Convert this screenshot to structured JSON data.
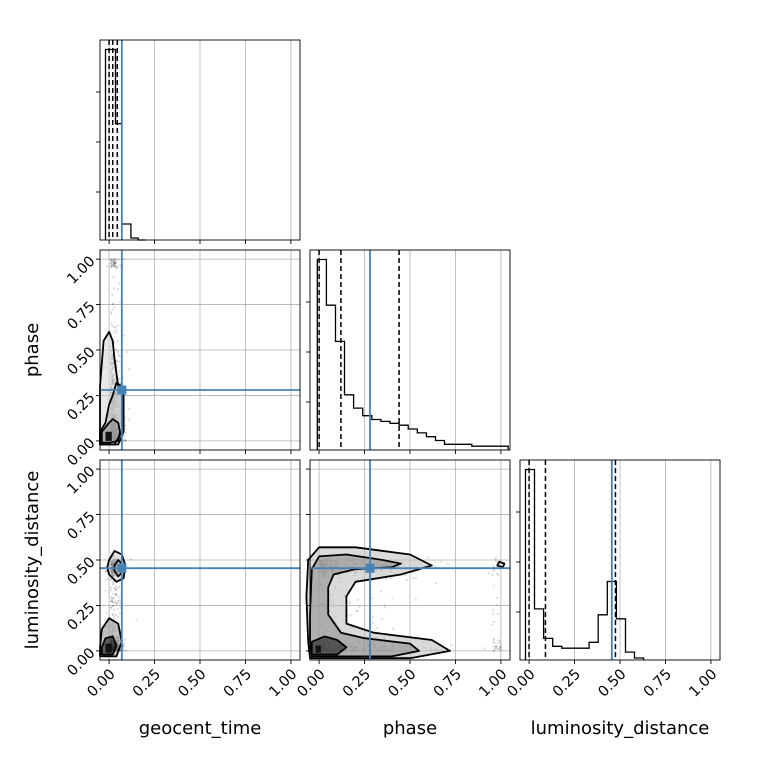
{
  "chart_data": {
    "type": "corner",
    "parameters": [
      "geocent_time",
      "phase",
      "luminosity_distance"
    ],
    "axis_range": [
      -0.05,
      1.05
    ],
    "ticks": [
      0.0,
      0.25,
      0.5,
      0.75,
      1.0
    ],
    "tick_labels": [
      "0.00",
      "0.25",
      "0.50",
      "0.75",
      "1.00"
    ],
    "grid": true,
    "truth_color": "#4682b4",
    "truths": {
      "geocent_time": 0.07,
      "phase": 0.28,
      "luminosity_distance": 0.455
    },
    "quantiles": {
      "geocent_time": [
        0.0,
        0.02,
        0.045
      ],
      "phase": [
        0.0,
        0.12,
        0.44
      ],
      "luminosity_distance": [
        0.0,
        0.09,
        0.475
      ]
    },
    "histograms": {
      "geocent_time": {
        "edges": [
          -0.02,
          0.035,
          0.07,
          0.12,
          0.16,
          0.2
        ],
        "counts": [
          0.95,
          0.58,
          0.08,
          0.01,
          0.0
        ]
      },
      "phase": {
        "edges": [
          -0.01,
          0.04,
          0.09,
          0.14,
          0.19,
          0.24,
          0.29,
          0.34,
          0.39,
          0.44,
          0.49,
          0.54,
          0.59,
          0.64,
          0.69,
          0.74,
          0.79,
          0.84,
          0.89,
          0.94,
          0.99,
          1.04
        ],
        "counts": [
          1.0,
          0.76,
          0.57,
          0.29,
          0.22,
          0.18,
          0.16,
          0.15,
          0.14,
          0.13,
          0.11,
          0.09,
          0.07,
          0.05,
          0.03,
          0.03,
          0.03,
          0.02,
          0.02,
          0.02,
          0.02
        ]
      },
      "luminosity_distance": {
        "edges": [
          -0.02,
          0.03,
          0.08,
          0.13,
          0.18,
          0.23,
          0.28,
          0.33,
          0.38,
          0.43,
          0.48,
          0.53,
          0.58,
          0.63
        ],
        "counts": [
          0.97,
          0.26,
          0.11,
          0.07,
          0.06,
          0.06,
          0.06,
          0.09,
          0.23,
          0.4,
          0.21,
          0.04,
          0.01
        ]
      }
    },
    "pairs": [
      {
        "x": "geocent_time",
        "y": "phase",
        "contours": [
          [
            [
              -0.02,
              0.0
            ],
            [
              0.0,
              0.0
            ],
            [
              0.015,
              0.0
            ],
            [
              0.015,
              0.05
            ],
            [
              0.0,
              0.05
            ],
            [
              -0.02,
              0.05
            ]
          ],
          [
            [
              -0.04,
              -0.01
            ],
            [
              0.0,
              -0.01
            ],
            [
              0.05,
              0.0
            ],
            [
              0.06,
              0.05
            ],
            [
              0.05,
              0.1
            ],
            [
              0.02,
              0.12
            ],
            [
              0.0,
              0.1
            ],
            [
              -0.04,
              0.05
            ]
          ],
          [
            [
              -0.05,
              -0.02
            ],
            [
              0.03,
              -0.02
            ],
            [
              0.07,
              0.05
            ],
            [
              0.075,
              0.2
            ],
            [
              0.07,
              0.3
            ],
            [
              0.04,
              0.32
            ],
            [
              0.02,
              0.25
            ],
            [
              0.0,
              0.2
            ],
            [
              -0.02,
              0.1
            ],
            [
              -0.05,
              0.05
            ]
          ],
          [
            [
              -0.05,
              -0.02
            ],
            [
              0.05,
              -0.02
            ],
            [
              0.08,
              0.05
            ],
            [
              0.08,
              0.25
            ],
            [
              0.05,
              0.3
            ],
            [
              0.03,
              0.45
            ],
            [
              0.02,
              0.55
            ],
            [
              0.0,
              0.6
            ],
            [
              -0.03,
              0.55
            ],
            [
              -0.05,
              0.3
            ]
          ]
        ]
      },
      {
        "x": "geocent_time",
        "y": "luminosity_distance",
        "contours": [
          [
            [
              -0.02,
              -0.01
            ],
            [
              0.015,
              -0.01
            ],
            [
              0.015,
              0.04
            ],
            [
              -0.02,
              0.04
            ]
          ],
          [
            [
              -0.04,
              -0.02
            ],
            [
              0.02,
              -0.02
            ],
            [
              0.04,
              0.03
            ],
            [
              0.02,
              0.08
            ],
            [
              -0.02,
              0.07
            ],
            [
              -0.04,
              0.02
            ]
          ],
          [
            [
              -0.05,
              -0.03
            ],
            [
              0.04,
              -0.03
            ],
            [
              0.07,
              0.05
            ],
            [
              0.05,
              0.15
            ],
            [
              0.0,
              0.18
            ],
            [
              -0.04,
              0.12
            ],
            [
              -0.05,
              0.02
            ]
          ],
          [
            [
              0.03,
              0.44
            ],
            [
              0.05,
              0.41
            ],
            [
              0.07,
              0.43
            ],
            [
              0.07,
              0.48
            ],
            [
              0.05,
              0.5
            ],
            [
              0.03,
              0.47
            ]
          ],
          [
            [
              0.0,
              0.42
            ],
            [
              0.04,
              0.38
            ],
            [
              0.08,
              0.4
            ],
            [
              0.09,
              0.47
            ],
            [
              0.07,
              0.53
            ],
            [
              0.03,
              0.55
            ],
            [
              0.0,
              0.5
            ],
            [
              -0.01,
              0.46
            ]
          ]
        ]
      },
      {
        "x": "phase",
        "y": "luminosity_distance",
        "contours": [
          [
            [
              -0.02,
              -0.01
            ],
            [
              0.01,
              -0.01
            ],
            [
              0.01,
              0.03
            ],
            [
              -0.02,
              0.03
            ]
          ],
          [
            [
              -0.04,
              -0.02
            ],
            [
              0.1,
              -0.02
            ],
            [
              0.15,
              0.02
            ],
            [
              0.1,
              0.06
            ],
            [
              0.03,
              0.08
            ],
            [
              -0.04,
              0.05
            ]
          ],
          [
            [
              -0.04,
              -0.03
            ],
            [
              0.4,
              -0.03
            ],
            [
              0.55,
              0.0
            ],
            [
              0.5,
              0.04
            ],
            [
              0.25,
              0.07
            ],
            [
              0.12,
              0.1
            ],
            [
              0.05,
              0.2
            ],
            [
              0.05,
              0.35
            ],
            [
              0.08,
              0.42
            ],
            [
              0.2,
              0.45
            ],
            [
              0.4,
              0.46
            ],
            [
              0.45,
              0.48
            ],
            [
              0.35,
              0.5
            ],
            [
              0.15,
              0.53
            ],
            [
              0.0,
              0.52
            ],
            [
              -0.04,
              0.45
            ],
            [
              -0.05,
              0.2
            ],
            [
              -0.05,
              0.05
            ]
          ],
          [
            [
              -0.05,
              -0.04
            ],
            [
              0.5,
              -0.04
            ],
            [
              0.72,
              0.0
            ],
            [
              0.62,
              0.06
            ],
            [
              0.3,
              0.1
            ],
            [
              0.15,
              0.15
            ],
            [
              0.15,
              0.3
            ],
            [
              0.2,
              0.38
            ],
            [
              0.45,
              0.42
            ],
            [
              0.62,
              0.47
            ],
            [
              0.5,
              0.53
            ],
            [
              0.2,
              0.57
            ],
            [
              0.0,
              0.57
            ],
            [
              -0.06,
              0.5
            ],
            [
              -0.07,
              0.3
            ],
            [
              -0.06,
              0.05
            ]
          ],
          [
            [
              0.98,
              0.47
            ],
            [
              1.01,
              0.46
            ],
            [
              1.02,
              0.48
            ],
            [
              0.99,
              0.49
            ]
          ]
        ]
      }
    ]
  }
}
